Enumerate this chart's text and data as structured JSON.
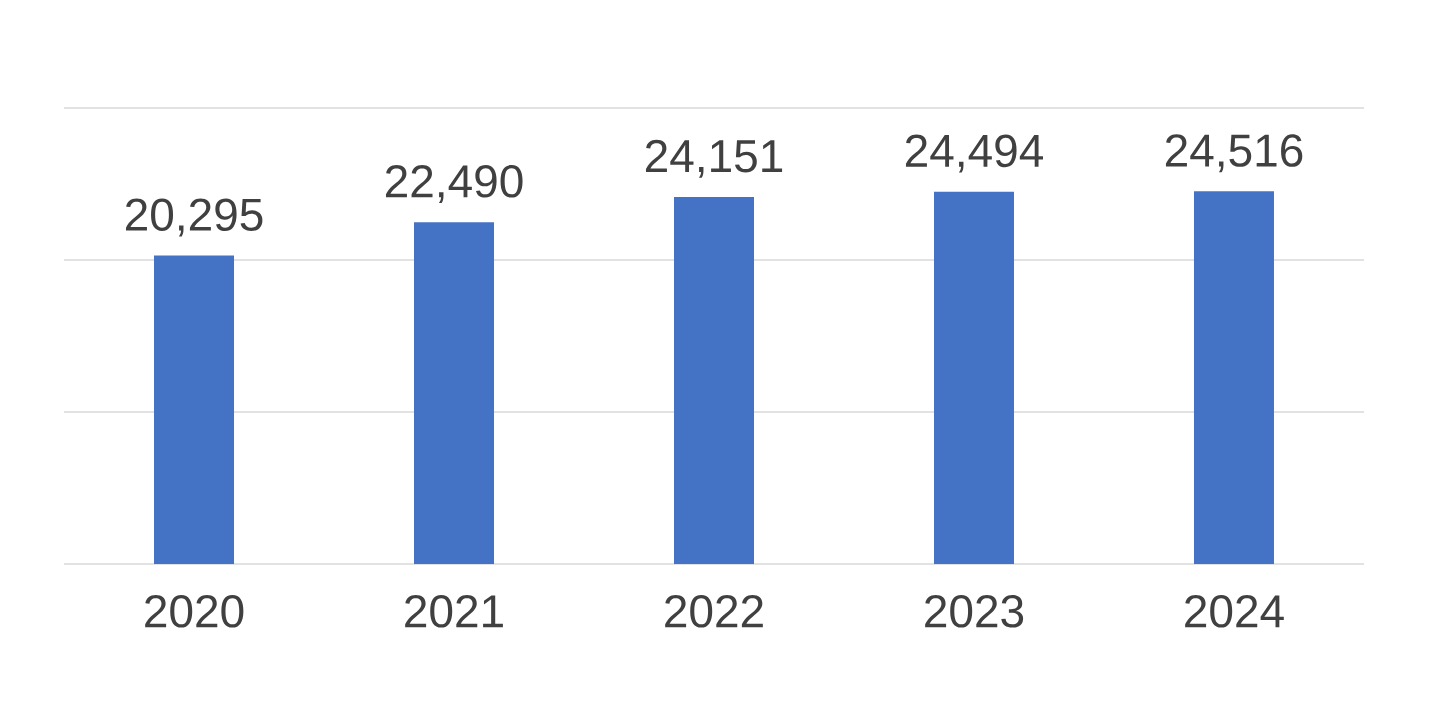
{
  "chart_data": {
    "type": "bar",
    "categories": [
      "2020",
      "2021",
      "2022",
      "2023",
      "2024"
    ],
    "values": [
      20295,
      22490,
      24151,
      24494,
      24516
    ],
    "value_labels": [
      "20,295",
      "22,490",
      "24,151",
      "24,494",
      "24,516"
    ],
    "color": "#4472c4",
    "ylim": [
      0,
      30000
    ],
    "yticks": [
      {
        "value": 0,
        "label": null
      },
      {
        "value": 10000,
        "label": null
      },
      {
        "value": 20000,
        "label": null
      },
      {
        "value": 30000,
        "label": null
      }
    ],
    "grid": "y",
    "tick_labels": "x"
  }
}
